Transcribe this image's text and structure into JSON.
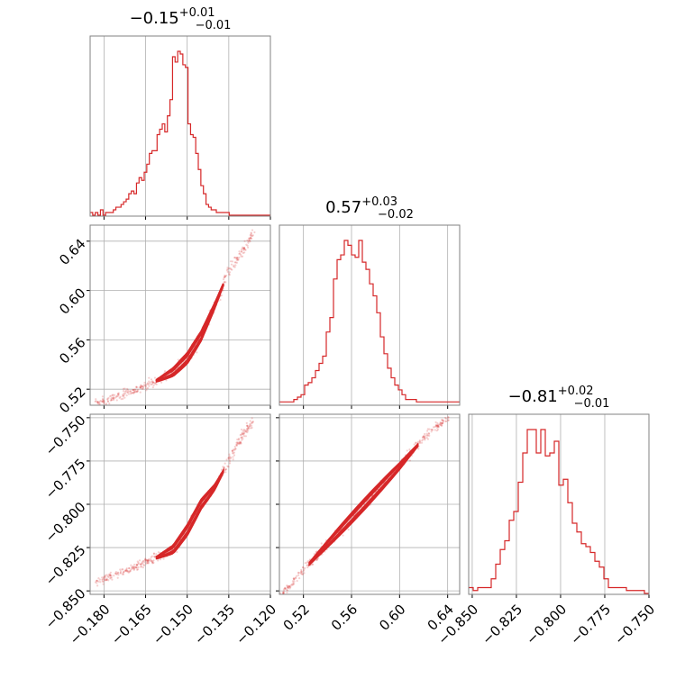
{
  "figure": {
    "colors": {
      "accent": "#d62728",
      "grid": "#b0b0b0",
      "frame": "#808080",
      "text": "#000000"
    }
  },
  "chart_data": [
    {
      "type": "histogram",
      "panel": "param0-marginal",
      "title": {
        "base": "−0.15",
        "sup": "+0.01",
        "sub": "−0.01"
      },
      "xlim": [
        -0.185,
        -0.12
      ],
      "xticks": [
        -0.18,
        -0.165,
        -0.15,
        -0.135,
        -0.12
      ],
      "xtick_labels": [
        "−0.180",
        "−0.165",
        "−0.150",
        "−0.135",
        "−0.120"
      ],
      "bin_range": [
        -0.185,
        -0.12
      ],
      "counts": [
        1,
        0,
        1,
        0,
        2,
        0,
        1,
        1,
        1,
        2,
        3,
        3,
        4,
        5,
        6,
        8,
        9,
        8,
        12,
        14,
        13,
        16,
        19,
        23,
        24,
        24,
        30,
        32,
        34,
        31,
        37,
        43,
        59,
        57,
        61,
        60,
        56,
        55,
        34,
        30,
        29,
        23,
        17,
        11,
        8,
        4,
        3,
        2,
        2,
        1,
        1,
        1,
        1,
        1,
        0,
        0,
        0,
        0,
        0,
        0,
        0,
        0,
        0,
        0,
        0,
        0,
        0,
        0,
        0,
        0
      ],
      "grid": true
    },
    {
      "type": "histogram",
      "panel": "param1-marginal",
      "title": {
        "base": "0.57",
        "sup": "+0.03",
        "sub": "−0.02"
      },
      "xlim": [
        0.5,
        0.65
      ],
      "xticks": [
        0.52,
        0.56,
        0.6,
        0.64
      ],
      "xtick_labels": [
        "0.52",
        "0.56",
        "0.60",
        "0.64"
      ],
      "bin_range": [
        0.5,
        0.65
      ],
      "counts": [
        1,
        1,
        1,
        1,
        2,
        3,
        4,
        8,
        9,
        11,
        14,
        17,
        20,
        30,
        36,
        52,
        60,
        62,
        68,
        66,
        62,
        61,
        68,
        59,
        56,
        50,
        45,
        38,
        28,
        21,
        15,
        11,
        8,
        6,
        4,
        2,
        2,
        2,
        1,
        1,
        1,
        1,
        1,
        1,
        1,
        1,
        1,
        1,
        1,
        1
      ],
      "grid": true
    },
    {
      "type": "histogram",
      "panel": "param2-marginal",
      "title": {
        "base": "−0.81",
        "sup": "+0.02",
        "sub": "−0.01"
      },
      "xlim": [
        -0.852,
        -0.75
      ],
      "xticks": [
        -0.85,
        -0.825,
        -0.8,
        -0.775,
        -0.75
      ],
      "xtick_labels": [
        "−0.850",
        "−0.825",
        "−0.800",
        "−0.775",
        "−0.750"
      ],
      "bin_range": [
        -0.852,
        -0.75
      ],
      "counts": [
        2,
        1,
        2,
        2,
        2,
        5,
        10,
        15,
        18,
        25,
        28,
        38,
        48,
        56,
        56,
        48,
        56,
        47,
        48,
        52,
        37,
        39,
        31,
        24,
        21,
        17,
        16,
        14,
        11,
        9,
        5,
        2,
        2,
        2,
        2,
        1,
        1,
        1,
        1,
        0
      ],
      "grid": true
    },
    {
      "type": "scatter-contour",
      "panel": "param0-vs-param1",
      "xlim": [
        -0.185,
        -0.12
      ],
      "ylim": [
        0.507,
        0.653
      ],
      "yticks": [
        0.52,
        0.56,
        0.6,
        0.64
      ],
      "ytick_labels": [
        "0.52",
        "0.56",
        "0.60",
        "0.64"
      ],
      "ridge": [
        [
          -0.183,
          0.508
        ],
        [
          -0.175,
          0.514
        ],
        [
          -0.168,
          0.52
        ],
        [
          -0.16,
          0.528
        ],
        [
          -0.155,
          0.534
        ],
        [
          -0.15,
          0.545
        ],
        [
          -0.145,
          0.563
        ],
        [
          -0.14,
          0.588
        ],
        [
          -0.135,
          0.616
        ],
        [
          -0.13,
          0.632
        ],
        [
          -0.126,
          0.648
        ]
      ],
      "contour_span": [
        -0.161,
        -0.137
      ],
      "grid": true
    },
    {
      "type": "scatter-contour",
      "panel": "param0-vs-param2",
      "xlim": [
        -0.185,
        -0.12
      ],
      "ylim": [
        -0.852,
        -0.748
      ],
      "yticks": [
        -0.85,
        -0.825,
        -0.8,
        -0.775,
        -0.75
      ],
      "ytick_labels": [
        "−0.850",
        "−0.825",
        "−0.800",
        "−0.775",
        "−0.750"
      ],
      "ridge": [
        [
          -0.183,
          -0.845
        ],
        [
          -0.175,
          -0.84
        ],
        [
          -0.168,
          -0.836
        ],
        [
          -0.16,
          -0.83
        ],
        [
          -0.155,
          -0.826
        ],
        [
          -0.15,
          -0.815
        ],
        [
          -0.145,
          -0.8
        ],
        [
          -0.14,
          -0.79
        ],
        [
          -0.135,
          -0.775
        ],
        [
          -0.13,
          -0.76
        ],
        [
          -0.126,
          -0.752
        ]
      ],
      "contour_span": [
        -0.161,
        -0.137
      ],
      "grid": true
    },
    {
      "type": "scatter-contour",
      "panel": "param1-vs-param2",
      "xlim": [
        0.5,
        0.65
      ],
      "ylim": [
        -0.852,
        -0.748
      ],
      "ridge": [
        [
          0.502,
          -0.852
        ],
        [
          0.52,
          -0.838
        ],
        [
          0.54,
          -0.823
        ],
        [
          0.56,
          -0.808
        ],
        [
          0.58,
          -0.793
        ],
        [
          0.6,
          -0.778
        ],
        [
          0.62,
          -0.762
        ],
        [
          0.64,
          -0.75
        ]
      ],
      "contour_span": [
        0.525,
        0.615
      ],
      "grid": true
    }
  ]
}
